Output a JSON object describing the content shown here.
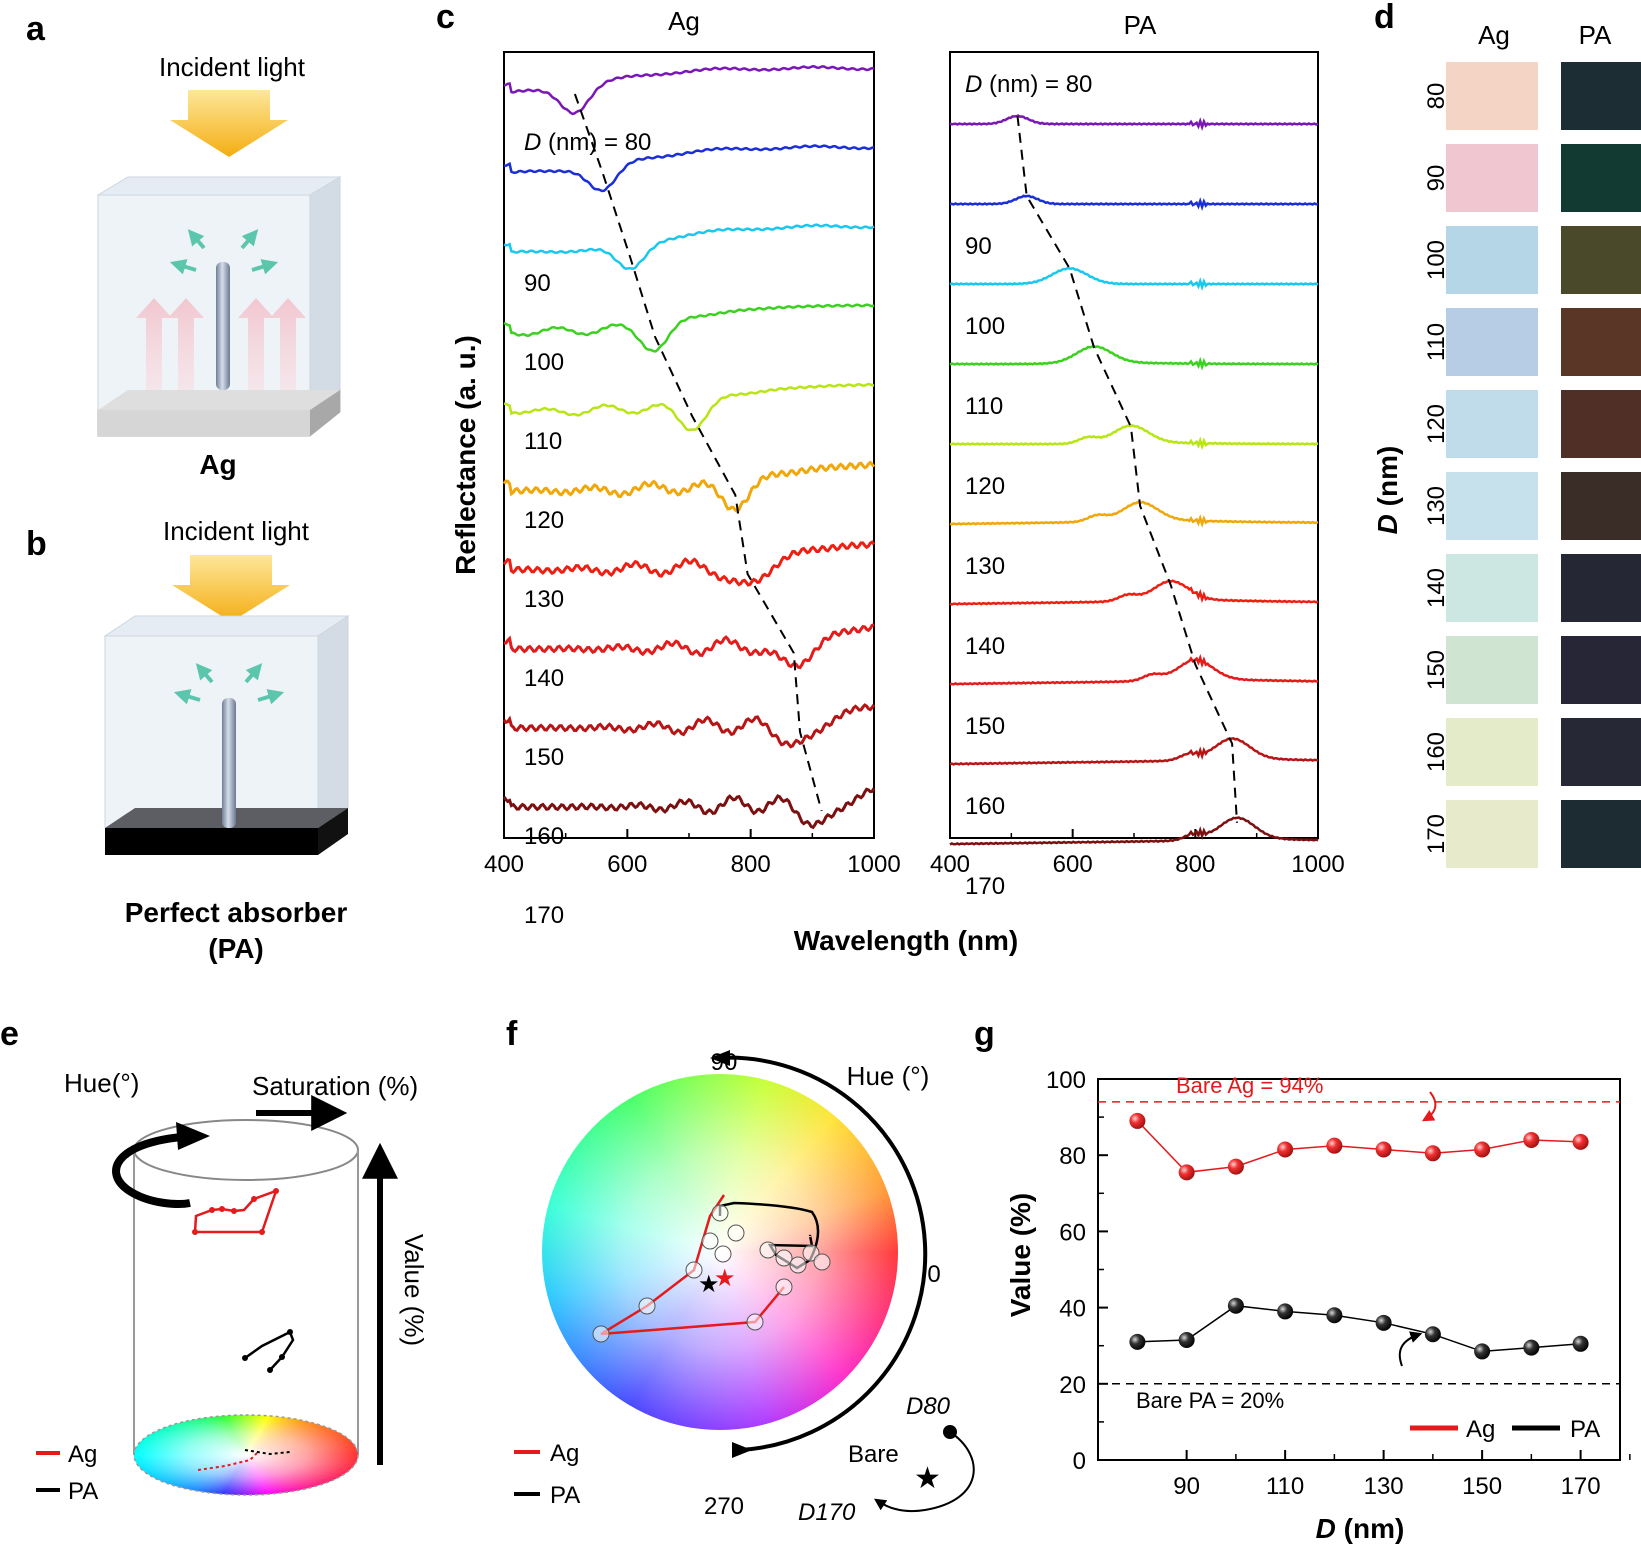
{
  "panel_labels": {
    "a": "a",
    "b": "b",
    "c": "c",
    "d": "d",
    "e": "e",
    "f": "f",
    "g": "g"
  },
  "panel_a": {
    "incident": "Incident light",
    "caption": "Ag"
  },
  "panel_b": {
    "incident": "Incident light",
    "caption_line1": "Perfect absorber",
    "caption_line2": "(PA)"
  },
  "chart_data": [
    {
      "type": "line",
      "panel": "c-left",
      "title": "Ag",
      "xlabel": "Wavelength (nm)",
      "ylabel": "Reflectance (a. u.)",
      "xlim": [
        400,
        1000
      ],
      "xticks": [
        "400",
        "600",
        "800",
        "1000"
      ],
      "d_prefix": "D",
      "first_label": "(nm) = 80",
      "series": [
        {
          "name": "80",
          "color": "#7a17b7",
          "dip_nm": 515
        },
        {
          "name": "90",
          "color": "#1a2fd8",
          "dip_nm": 560
        },
        {
          "name": "100",
          "color": "#18c8ef",
          "dip_nm": 605
        },
        {
          "name": "110",
          "color": "#3bd11f",
          "dip_nm": 645
        },
        {
          "name": "120",
          "color": "#b8e514",
          "dip_nm": 705
        },
        {
          "name": "130",
          "color": "#f0a70a",
          "dip_nm": 775
        },
        {
          "name": "140",
          "color": "#ee1f12",
          "dip_nm": 795
        },
        {
          "name": "150",
          "color": "#e31b1b",
          "dip_nm": 870
        },
        {
          "name": "160",
          "color": "#b71515",
          "dip_nm": 880
        },
        {
          "name": "170",
          "color": "#7c0f0f",
          "dip_nm": 915
        }
      ]
    },
    {
      "type": "line",
      "panel": "c-right",
      "title": "PA",
      "xlim": [
        400,
        1000
      ],
      "xticks": [
        "400",
        "600",
        "800",
        "1000"
      ],
      "d_prefix": "D",
      "first_label": "(nm) = 80",
      "series": [
        {
          "name": "80",
          "color": "#7a17b7",
          "peak_nm": 510
        },
        {
          "name": "90",
          "color": "#1a2fd8",
          "peak_nm": 525
        },
        {
          "name": "100",
          "color": "#18c8ef",
          "peak_nm": 595
        },
        {
          "name": "110",
          "color": "#3bd11f",
          "peak_nm": 635
        },
        {
          "name": "120",
          "color": "#b8e514",
          "peak_nm": 695
        },
        {
          "name": "130",
          "color": "#f0a70a",
          "peak_nm": 710
        },
        {
          "name": "140",
          "color": "#ee1f12",
          "peak_nm": 760
        },
        {
          "name": "150",
          "color": "#e31b1b",
          "peak_nm": 800
        },
        {
          "name": "160",
          "color": "#b71515",
          "peak_nm": 860
        },
        {
          "name": "170",
          "color": "#7c0f0f",
          "peak_nm": 868
        }
      ]
    },
    {
      "type": "line",
      "panel": "g",
      "xlabel_var": "D",
      "xlabel_unit": " (nm)",
      "ylabel": "Value (%)",
      "xlim": [
        72,
        178
      ],
      "ylim": [
        0,
        100
      ],
      "xticks": [
        90,
        110,
        130,
        150,
        170
      ],
      "yticks": [
        0,
        20,
        40,
        60,
        80,
        100
      ],
      "series": [
        {
          "name": "Ag",
          "color": "#e41a1c",
          "x": [
            80,
            90,
            100,
            110,
            120,
            130,
            140,
            150,
            160,
            170
          ],
          "y": [
            89,
            75.5,
            77,
            81.5,
            82.5,
            81.5,
            80.5,
            81.5,
            84,
            83.5
          ]
        },
        {
          "name": "PA",
          "color": "#000000",
          "x": [
            80,
            90,
            100,
            110,
            120,
            130,
            140,
            150,
            160,
            170
          ],
          "y": [
            31,
            31.5,
            40.5,
            39,
            38,
            36,
            33,
            28.5,
            29.5,
            30.5
          ]
        }
      ],
      "reference_lines": [
        {
          "label": "Bare Ag = 94%",
          "y": 94,
          "color": "#e41a1c"
        },
        {
          "label": "Bare PA = 20%",
          "y": 20,
          "color": "#000000"
        }
      ]
    }
  ],
  "panel_d": {
    "col_labels": [
      "Ag",
      "PA"
    ],
    "axis_var": "D",
    "axis_unit": " (nm)",
    "rows": [
      {
        "d": "80",
        "ag": "#f4d5c5",
        "pa": "#1c2d33"
      },
      {
        "d": "90",
        "ag": "#f0c6d0",
        "pa": "#133a32"
      },
      {
        "d": "100",
        "ag": "#b5d6e6",
        "pa": "#4a4a2a"
      },
      {
        "d": "110",
        "ag": "#b7cde6",
        "pa": "#5a3626"
      },
      {
        "d": "120",
        "ag": "#c0dbe9",
        "pa": "#4f2f26"
      },
      {
        "d": "130",
        "ag": "#c7e1ec",
        "pa": "#3a2c26"
      },
      {
        "d": "140",
        "ag": "#cce6e1",
        "pa": "#262734"
      },
      {
        "d": "150",
        "ag": "#cfe5d2",
        "pa": "#262636"
      },
      {
        "d": "160",
        "ag": "#e4ebc9",
        "pa": "#262836"
      },
      {
        "d": "170",
        "ag": "#e8ebcb",
        "pa": "#1d2c33"
      }
    ]
  },
  "panel_e": {
    "hue_label": "Hue(°)",
    "saturation_label": "Saturation (%)",
    "value_label": "Value (%)",
    "legend": [
      {
        "name": "Ag",
        "color": "#e41a1c"
      },
      {
        "name": "PA",
        "color": "#000000"
      }
    ]
  },
  "panel_f": {
    "hue_title": "Hue (°)",
    "angle_labels": {
      "a90": "90",
      "a0": "0",
      "a270": "270"
    },
    "legend": [
      {
        "name": "Ag",
        "color": "#e41a1c"
      },
      {
        "name": "PA",
        "color": "#000000"
      }
    ],
    "bare_label": "Bare",
    "start_label": "D80",
    "end_label": "D170"
  }
}
